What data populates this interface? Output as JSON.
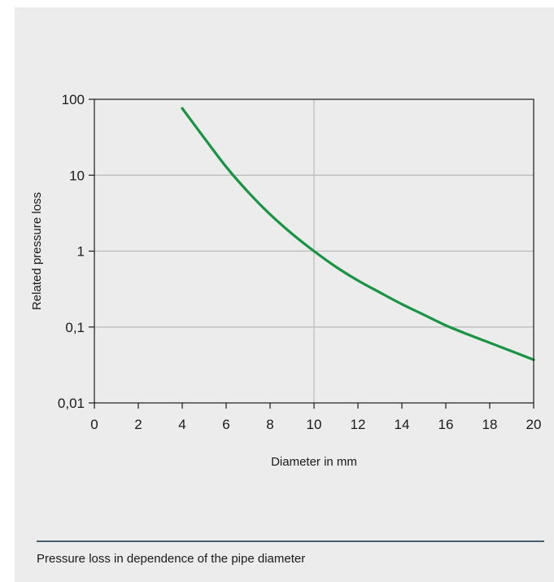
{
  "chart_data": {
    "type": "line",
    "title": "",
    "xlabel": "Diameter in mm",
    "ylabel": "Related pressure loss",
    "xlim": [
      0,
      20
    ],
    "ylim": [
      0.01,
      100
    ],
    "y_scale": "log",
    "x_ticks": [
      0,
      2,
      4,
      6,
      8,
      10,
      12,
      14,
      16,
      18,
      20
    ],
    "x_tick_labels": [
      "0",
      "2",
      "4",
      "6",
      "8",
      "10",
      "12",
      "14",
      "16",
      "18",
      "20"
    ],
    "y_ticks": [
      0.01,
      0.1,
      1,
      10,
      100
    ],
    "y_tick_labels": [
      "0,01",
      "0,1",
      "1",
      "10",
      "100"
    ],
    "grid": {
      "x": [
        10
      ],
      "y": [
        0.1,
        1,
        10
      ]
    },
    "series": [
      {
        "color": "#1a9444",
        "x": [
          4,
          5,
          6,
          7,
          8,
          9,
          10,
          11,
          12,
          13,
          14,
          15,
          16,
          17,
          18,
          19,
          20
        ],
        "values": [
          76,
          31,
          12.9,
          6.0,
          3.05,
          1.69,
          1.0,
          0.62,
          0.41,
          0.285,
          0.2,
          0.145,
          0.105,
          0.08,
          0.062,
          0.048,
          0.037
        ]
      }
    ]
  },
  "caption": "Pressure loss in dependence of the pipe diameter",
  "colors": {
    "panel_background": "#ececec",
    "grid": "#b9b9b9",
    "axis": "#1a1a1a",
    "divider": "#4b5f6b"
  }
}
